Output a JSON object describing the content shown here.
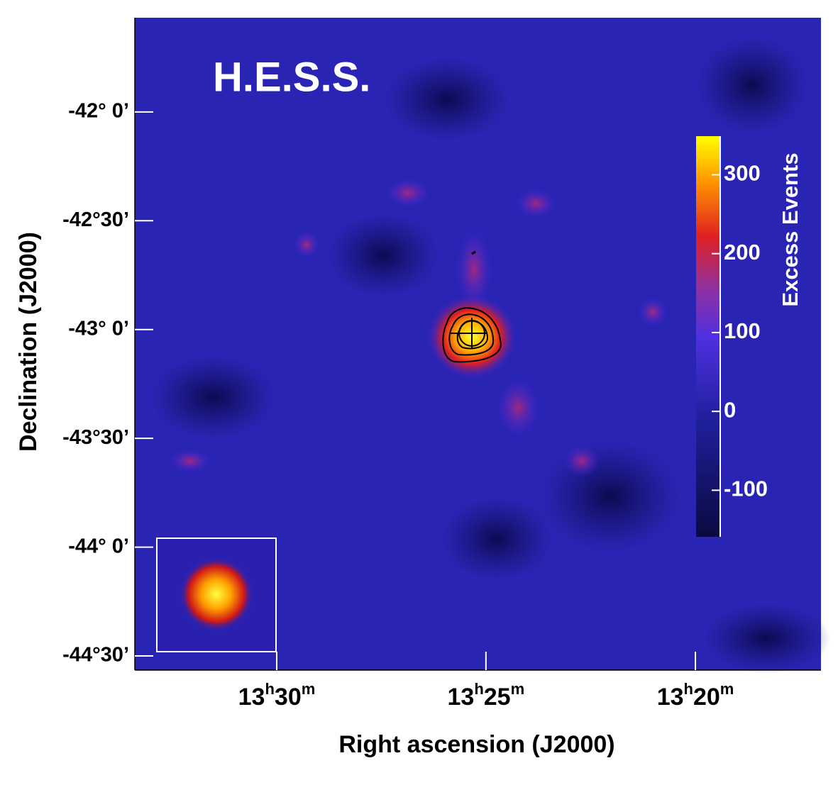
{
  "chart_data": {
    "type": "skymap",
    "title": "H.E.S.S.",
    "xlabel": "Right ascension (J2000)",
    "ylabel": "Declination (J2000)",
    "colorbar_label": "Excess Events",
    "xlim": [
      13.5565,
      13.2833
    ],
    "xticks": [
      {
        "value": 13.5,
        "label": "13h30m"
      },
      {
        "value": 13.4167,
        "label": "13h25m"
      },
      {
        "value": 13.3333,
        "label": "13h20m"
      }
    ],
    "ylim": [
      -44.565,
      -41.567
    ],
    "yticks": [
      {
        "value": -42,
        "label": "-42° 0’"
      },
      {
        "value": -42.5,
        "label": "-42°30’"
      },
      {
        "value": -43,
        "label": "-43° 0’"
      },
      {
        "value": -43.5,
        "label": "-43°30’"
      },
      {
        "value": -44,
        "label": "-44° 0’"
      },
      {
        "value": -44.5,
        "label": "-44°30’"
      }
    ],
    "clim": [
      -159,
      349
    ],
    "cticks": [
      300,
      200,
      100,
      0,
      -100
    ]
  }
}
